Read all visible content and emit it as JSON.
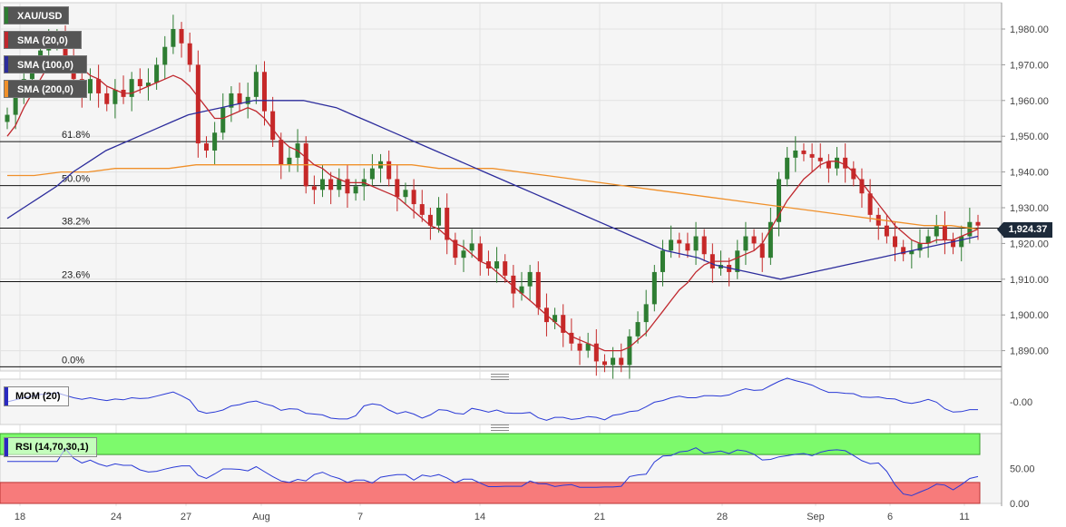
{
  "chart_data": [
    {
      "type": "candlestick",
      "title": "XAU/USD",
      "indicators": [
        "SMA (20,0)",
        "SMA (100,0)",
        "SMA (200,0)"
      ],
      "current_price": "1,924.37",
      "y_axis_ticks": [
        "1,980.00",
        "1,970.00",
        "1,960.00",
        "1,950.00",
        "1,940.00",
        "1,930.00",
        "1,920.00",
        "1,910.00",
        "1,900.00",
        "1,890.00"
      ],
      "y_axis_values": [
        1980,
        1970,
        1960,
        1950,
        1940,
        1930,
        1920,
        1910,
        1900,
        1890
      ],
      "ylim": [
        1885,
        1987
      ],
      "x_axis_ticks": [
        "18",
        "24",
        "27",
        "Aug",
        "7",
        "14",
        "21",
        "28",
        "Sep",
        "6",
        "11"
      ],
      "fibonacci": [
        {
          "label": "61.8%",
          "value": 1948.5
        },
        {
          "label": "50.0%",
          "value": 1936.2
        },
        {
          "label": "38.2%",
          "value": 1924.3
        },
        {
          "label": "23.6%",
          "value": 1909.3
        },
        {
          "label": "0.0%",
          "value": 1885.5
        }
      ],
      "close_series": [
        1956,
        1961,
        1966,
        1970,
        1974,
        1976,
        1978,
        1972,
        1966,
        1962,
        1966,
        1962,
        1959,
        1963,
        1961,
        1966,
        1964,
        1965,
        1970,
        1975,
        1980,
        1976,
        1970,
        1948,
        1946,
        1951,
        1958,
        1962,
        1959,
        1961,
        1968,
        1957,
        1949,
        1942,
        1944,
        1948,
        1936,
        1935,
        1938,
        1935,
        1938,
        1934,
        1936,
        1938,
        1941,
        1943,
        1938,
        1933,
        1935,
        1931,
        1928,
        1925,
        1930,
        1921,
        1916,
        1918,
        1920,
        1915,
        1913,
        1915,
        1911,
        1906,
        1908,
        1912,
        1902,
        1898,
        1900,
        1895,
        1892,
        1890,
        1892,
        1887,
        1886,
        1888,
        1886,
        1894,
        1898,
        1903,
        1912,
        1918,
        1921,
        1920,
        1918,
        1922,
        1917,
        1913,
        1914,
        1912,
        1918,
        1922,
        1920,
        1916,
        1926,
        1938,
        1944,
        1946,
        1945,
        1944,
        1943,
        1941,
        1944,
        1941,
        1938,
        1934,
        1928,
        1925,
        1922,
        1919,
        1917,
        1918,
        1920,
        1922,
        1925,
        1921,
        1919,
        1922,
        1926,
        1925
      ],
      "sma20_series": [
        1950,
        1953,
        1958,
        1962,
        1966,
        1970,
        1972,
        1972,
        1971,
        1969,
        1967,
        1966,
        1964,
        1963,
        1962,
        1962,
        1963,
        1964,
        1965,
        1966,
        1967,
        1966,
        1964,
        1961,
        1958,
        1955,
        1955,
        1956,
        1957,
        1958,
        1957,
        1955,
        1952,
        1949,
        1947,
        1946,
        1944,
        1942,
        1941,
        1939,
        1938,
        1937,
        1937,
        1937,
        1936,
        1935,
        1934,
        1933,
        1931,
        1929,
        1927,
        1925,
        1924,
        1922,
        1920,
        1919,
        1917,
        1915,
        1914,
        1912,
        1910,
        1908,
        1906,
        1904,
        1902,
        1900,
        1898,
        1896,
        1894,
        1893,
        1892,
        1891,
        1890,
        1890,
        1890,
        1891,
        1893,
        1895,
        1898,
        1901,
        1904,
        1907,
        1909,
        1912,
        1914,
        1915,
        1915,
        1915,
        1916,
        1917,
        1918,
        1920,
        1924,
        1928,
        1932,
        1935,
        1938,
        1940,
        1942,
        1943,
        1943,
        1942,
        1940,
        1937,
        1934,
        1931,
        1928,
        1925,
        1923,
        1921,
        1920,
        1920,
        1921,
        1921,
        1921,
        1922,
        1923,
        1924
      ],
      "sma100_series": [
        1927,
        1930,
        1933,
        1936,
        1940,
        1943,
        1946,
        1948,
        1950,
        1952,
        1954,
        1956,
        1957,
        1958,
        1959,
        1960,
        1960,
        1960,
        1960,
        1959,
        1958,
        1956,
        1954,
        1952,
        1950,
        1948,
        1946,
        1944,
        1942,
        1940,
        1938,
        1936,
        1934,
        1932,
        1930,
        1928,
        1926,
        1924,
        1922,
        1920,
        1918,
        1917,
        1916,
        1914,
        1913,
        1912,
        1911,
        1910,
        1911,
        1912,
        1913,
        1914,
        1915,
        1916,
        1917,
        1918,
        1919,
        1920,
        1921,
        1922
      ],
      "sma200_series": [
        1939,
        1939,
        1940,
        1940,
        1941,
        1941,
        1941,
        1942,
        1942,
        1942,
        1942,
        1942,
        1942,
        1942,
        1942,
        1942,
        1941,
        1941,
        1941,
        1940,
        1939,
        1938,
        1937,
        1936,
        1935,
        1934,
        1933,
        1932,
        1931,
        1930,
        1929,
        1928,
        1927,
        1926,
        1925,
        1925,
        1924
      ],
      "momentum": {
        "label": "MOM (20)",
        "tick": "-0.00"
      },
      "rsi": {
        "label": "RSI (14,70,30,1)",
        "ticks": [
          "50.00",
          "0.00"
        ],
        "overbought": 70,
        "oversold": 30
      }
    }
  ],
  "colors": {
    "up": "#2e7d32",
    "down": "#c62828",
    "sma20": "#c0282e",
    "sma100": "#2c2c9c",
    "sma200": "#f0902a",
    "rsi_high": "#7dfa6c",
    "rsi_low": "#f77b7b",
    "line": "#2a3ad6"
  },
  "legend": [
    {
      "label": "XAU/USD",
      "color": "#2e7d32"
    },
    {
      "label": "SMA (20,0)",
      "color": "#c0282e"
    },
    {
      "label": "SMA (100,0)",
      "color": "#2c2c9c"
    },
    {
      "label": "SMA (200,0)",
      "color": "#f0902a"
    }
  ]
}
